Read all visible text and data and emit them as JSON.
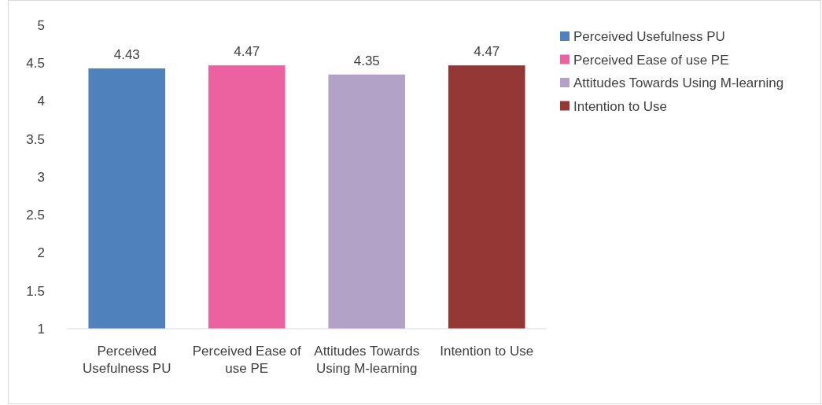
{
  "chart_data": {
    "type": "bar",
    "categories": [
      "Perceived Usefulness PU",
      "Perceived Ease of use PE",
      "Attitudes Towards Using M-learning",
      "Intention to Use"
    ],
    "series": [
      {
        "name": "Perceived Usefulness PU",
        "color": "#4f81bd",
        "values": [
          4.43,
          null,
          null,
          null
        ]
      },
      {
        "name": "Perceived Ease of use PE",
        "color": "#ec619f",
        "values": [
          null,
          4.47,
          null,
          null
        ]
      },
      {
        "name": "Attitudes Towards Using M-learning",
        "color": "#b3a2c7",
        "values": [
          null,
          null,
          4.35,
          null
        ]
      },
      {
        "name": "Intention to Use",
        "color": "#953735",
        "values": [
          null,
          null,
          null,
          4.47
        ]
      }
    ],
    "ylim": [
      1,
      5
    ],
    "yticks": [
      1,
      1.5,
      2,
      2.5,
      3,
      3.5,
      4,
      4.5,
      5
    ],
    "data_labels": true,
    "grid": false,
    "legend": "right"
  }
}
